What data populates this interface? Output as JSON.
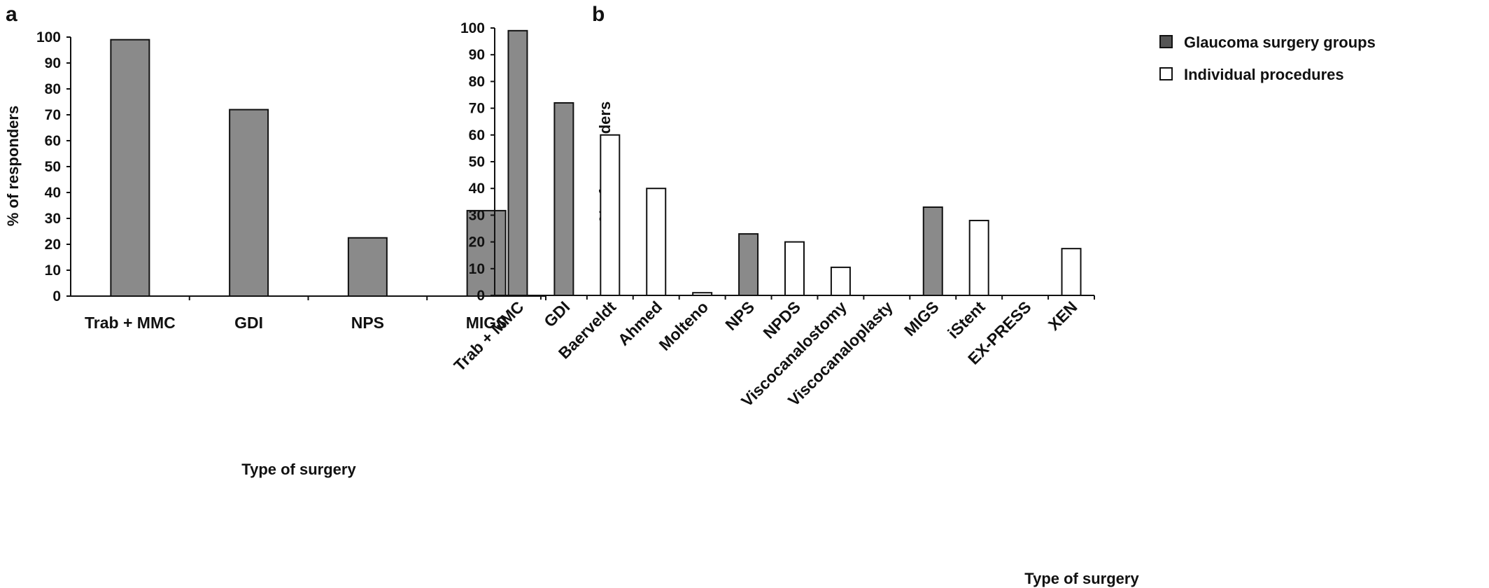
{
  "colors": {
    "group_fill": "#8a8a8a",
    "individual_fill": "#ffffff",
    "stroke": "#111111"
  },
  "legend": {
    "group_label": "Glaucoma surgery groups",
    "individual_label": "Individual procedures"
  },
  "chart_data": [
    {
      "panel": "a",
      "type": "bar",
      "categories": [
        "Trab + MMC",
        "GDI",
        "NPS",
        "MIGS"
      ],
      "values": [
        99,
        72,
        22.5,
        33
      ],
      "kinds": [
        "group",
        "group",
        "group",
        "group"
      ],
      "xlabel": "Type of surgery",
      "ylabel": "% of responders",
      "ylim": [
        0,
        100
      ],
      "yticks": [
        0,
        10,
        20,
        30,
        40,
        50,
        60,
        70,
        80,
        90,
        100
      ],
      "grid": false,
      "legend": "none"
    },
    {
      "panel": "b",
      "type": "bar",
      "categories": [
        "Trab + MMC",
        "GDI",
        "Baerveldt",
        "Ahmed",
        "Molteno",
        "NPS",
        "NPDS",
        "Viscocanalostomy",
        "Viscocanaloplasty",
        "MIGS",
        "iStent",
        "EX-PRESS",
        "XEN"
      ],
      "values": [
        99,
        72,
        60,
        40,
        1,
        23,
        20,
        10.5,
        0,
        33,
        28,
        0,
        17.5
      ],
      "kinds": [
        "group",
        "group",
        "individual",
        "individual",
        "individual",
        "group",
        "individual",
        "individual",
        "individual",
        "group",
        "individual",
        "individual",
        "individual"
      ],
      "xlabel": "Type of surgery",
      "ylabel": "% of responders",
      "ylim": [
        0,
        100
      ],
      "yticks": [
        0,
        10,
        20,
        30,
        40,
        50,
        60,
        70,
        80,
        90,
        100
      ],
      "grid": false,
      "legend": "top-right"
    }
  ]
}
